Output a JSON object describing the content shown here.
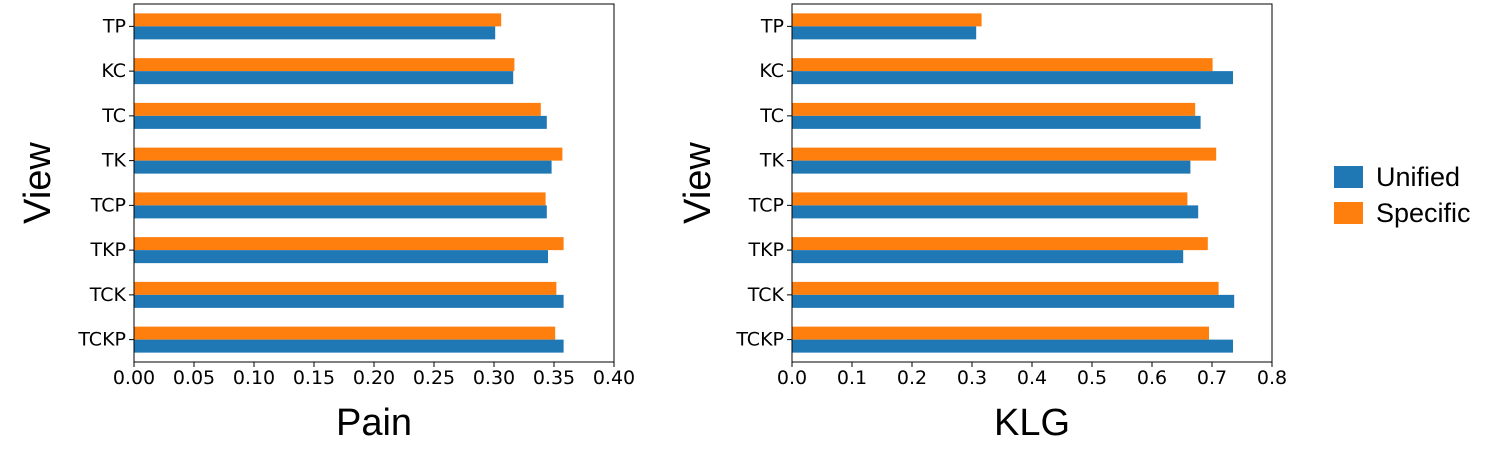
{
  "legend": {
    "entries": [
      {
        "name": "Unified",
        "color": "#1f77b4"
      },
      {
        "name": "Specific",
        "color": "#ff7f0e"
      }
    ]
  },
  "chart_data": [
    {
      "type": "bar",
      "orientation": "horizontal",
      "title": "",
      "xlabel": "Pain",
      "ylabel": "View",
      "xlim": [
        0,
        0.4
      ],
      "xticks": [
        "0.00",
        "0.05",
        "0.10",
        "0.15",
        "0.20",
        "0.25",
        "0.30",
        "0.35",
        "0.40"
      ],
      "categories": [
        "TP",
        "KC",
        "TC",
        "TK",
        "TCP",
        "TKP",
        "TCK",
        "TCKP"
      ],
      "series": [
        {
          "name": "Unified",
          "color": "#1f77b4",
          "values": [
            0.301,
            0.316,
            0.344,
            0.348,
            0.344,
            0.345,
            0.358,
            0.358
          ]
        },
        {
          "name": "Specific",
          "color": "#ff7f0e",
          "values": [
            0.306,
            0.317,
            0.339,
            0.357,
            0.343,
            0.358,
            0.352,
            0.351
          ]
        }
      ],
      "grid": false,
      "legend": "right"
    },
    {
      "type": "bar",
      "orientation": "horizontal",
      "title": "",
      "xlabel": "KLG",
      "ylabel": "View",
      "xlim": [
        0,
        0.8
      ],
      "xticks": [
        "0.0",
        "0.1",
        "0.2",
        "0.3",
        "0.4",
        "0.5",
        "0.6",
        "0.7",
        "0.8"
      ],
      "categories": [
        "TP",
        "KC",
        "TC",
        "TK",
        "TCP",
        "TKP",
        "TCK",
        "TCKP"
      ],
      "series": [
        {
          "name": "Unified",
          "color": "#1f77b4",
          "values": [
            0.307,
            0.735,
            0.681,
            0.664,
            0.677,
            0.652,
            0.737,
            0.735
          ]
        },
        {
          "name": "Specific",
          "color": "#ff7f0e",
          "values": [
            0.316,
            0.701,
            0.672,
            0.707,
            0.659,
            0.693,
            0.711,
            0.695
          ]
        }
      ],
      "grid": false,
      "legend": "right"
    }
  ]
}
